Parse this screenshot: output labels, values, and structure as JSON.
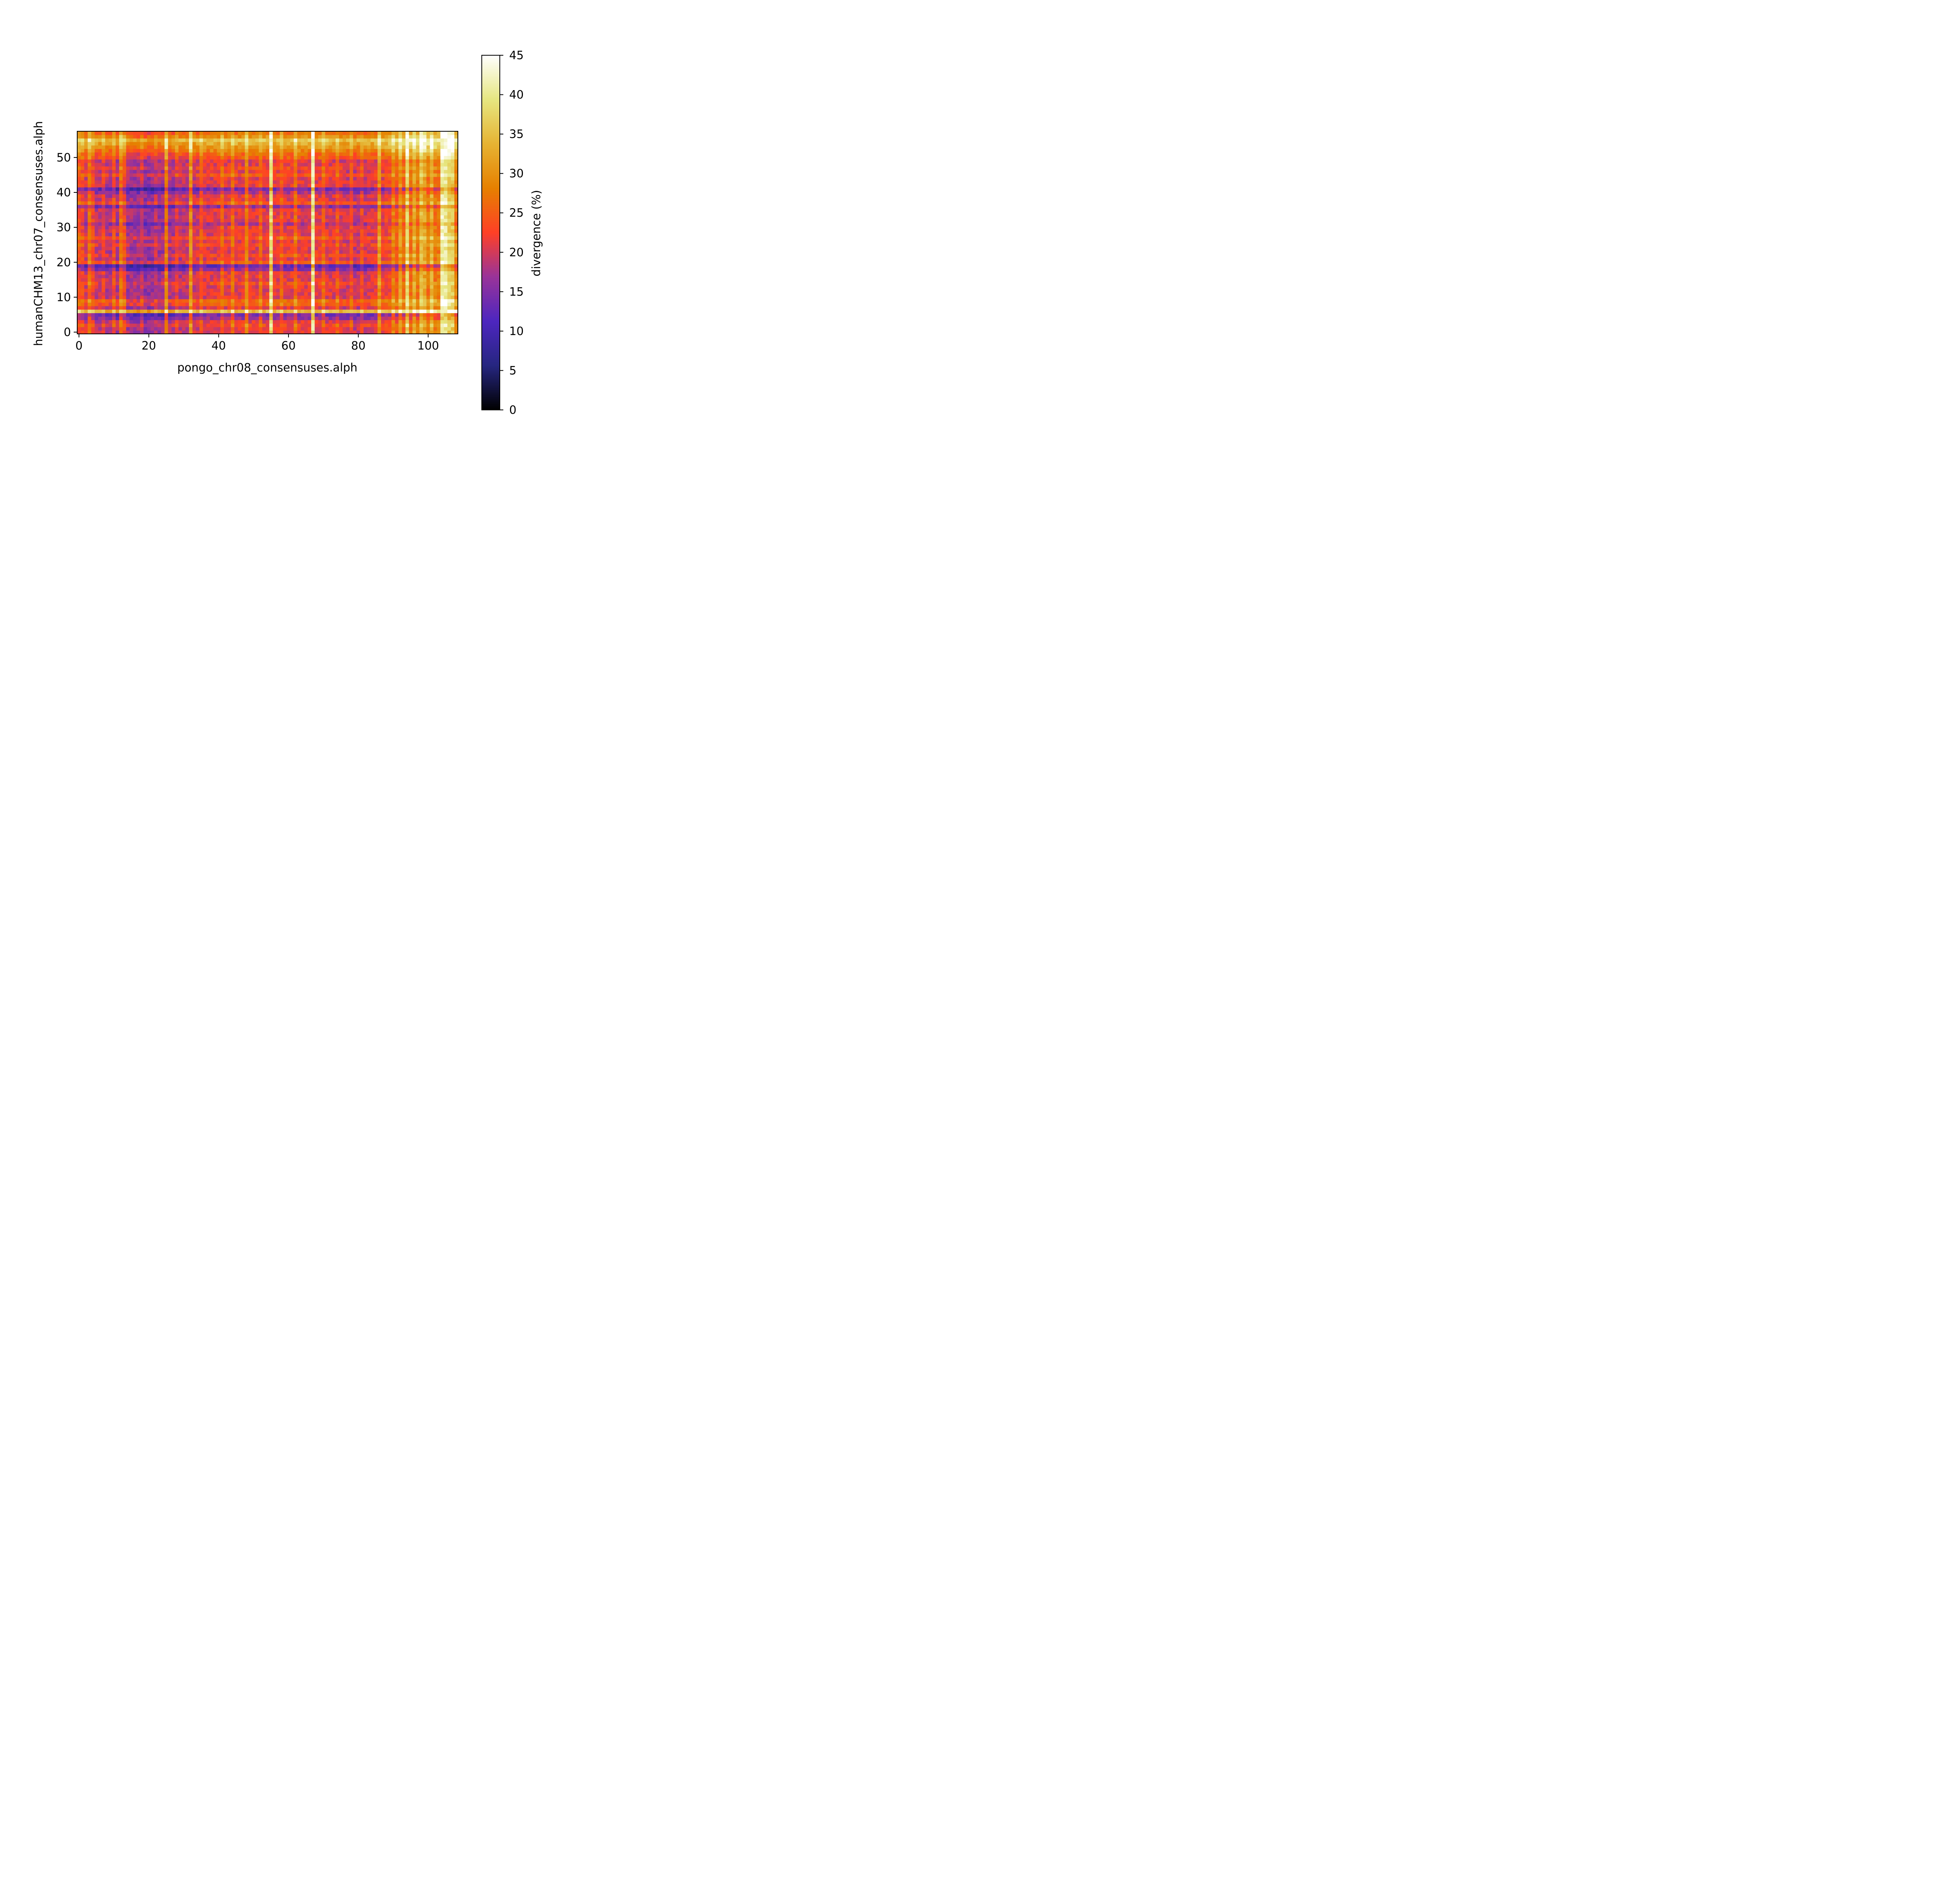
{
  "chart_data": {
    "type": "heatmap",
    "title": "",
    "xlabel": "pongo_chr08_consensuses.alph",
    "ylabel": "humanCHM13_chr07_consensuses.alph",
    "colorbar_label": "divergence (%)",
    "colormap": "CMRmap",
    "colormap_stops": [
      "#000000",
      "#262680",
      "#4d26bf",
      "#993399",
      "#ff4026",
      "#e68000",
      "#e6b333",
      "#e6e680",
      "#ffffff"
    ],
    "x_range": [
      0,
      108
    ],
    "y_range": [
      0,
      57
    ],
    "x_ticks": [
      0,
      20,
      40,
      60,
      80,
      100
    ],
    "y_ticks": [
      0,
      10,
      20,
      30,
      40,
      50
    ],
    "colorbar_range": [
      0,
      45
    ],
    "colorbar_ticks": [
      0,
      5,
      10,
      15,
      20,
      25,
      30,
      35,
      40,
      45
    ],
    "grid": false,
    "n_columns": 109,
    "n_rows": 58,
    "column_effects": [
      {
        "x": 0,
        "delta": 4
      },
      {
        "x": 1,
        "delta": 3
      },
      {
        "x": 3,
        "delta": 7
      },
      {
        "x": 4,
        "delta": 3
      },
      {
        "x": 7,
        "delta": 3
      },
      {
        "x": 10,
        "delta": 5
      },
      {
        "x": 12,
        "delta": 9
      },
      {
        "x": 13,
        "delta": 6
      },
      {
        "x": 18,
        "delta": 3
      },
      {
        "x": 22,
        "delta": 2
      },
      {
        "x": 25,
        "delta": 10
      },
      {
        "x": 28,
        "delta": 3
      },
      {
        "x": 32,
        "delta": 10
      },
      {
        "x": 35,
        "delta": 4
      },
      {
        "x": 41,
        "delta": 4
      },
      {
        "x": 44,
        "delta": 5
      },
      {
        "x": 48,
        "delta": 7
      },
      {
        "x": 52,
        "delta": 4
      },
      {
        "x": 55,
        "delta": 17
      },
      {
        "x": 58,
        "delta": 4
      },
      {
        "x": 62,
        "delta": 5
      },
      {
        "x": 67,
        "delta": 19
      },
      {
        "x": 70,
        "delta": 4
      },
      {
        "x": 74,
        "delta": 4
      },
      {
        "x": 78,
        "delta": 4
      },
      {
        "x": 81,
        "delta": 3
      },
      {
        "x": 86,
        "delta": 9
      },
      {
        "x": 90,
        "delta": 5
      },
      {
        "x": 92,
        "delta": 6
      },
      {
        "x": 94,
        "delta": 11
      },
      {
        "x": 96,
        "delta": 6
      },
      {
        "x": 98,
        "delta": 8
      },
      {
        "x": 99,
        "delta": 5
      },
      {
        "x": 101,
        "delta": 6
      },
      {
        "x": 104,
        "delta": 14
      },
      {
        "x": 105,
        "delta": 13
      },
      {
        "x": 106,
        "delta": 9
      },
      {
        "x": 107,
        "delta": 8
      }
    ],
    "row_effects": [
      {
        "y": 2,
        "delta": 2
      },
      {
        "y": 4,
        "delta": -4
      },
      {
        "y": 5,
        "delta": -6
      },
      {
        "y": 6,
        "delta": 14
      },
      {
        "y": 8,
        "delta": 4
      },
      {
        "y": 9,
        "delta": 5
      },
      {
        "y": 14,
        "delta": 2
      },
      {
        "y": 18,
        "delta": -5
      },
      {
        "y": 19,
        "delta": -8
      },
      {
        "y": 20,
        "delta": 3
      },
      {
        "y": 22,
        "delta": 2
      },
      {
        "y": 25,
        "delta": 2
      },
      {
        "y": 27,
        "delta": 3
      },
      {
        "y": 31,
        "delta": -3
      },
      {
        "y": 36,
        "delta": -5
      },
      {
        "y": 37,
        "delta": 3
      },
      {
        "y": 40,
        "delta": -3
      },
      {
        "y": 41,
        "delta": -7
      },
      {
        "y": 45,
        "delta": 3
      },
      {
        "y": 47,
        "delta": 2
      },
      {
        "y": 50,
        "delta": 4
      },
      {
        "y": 51,
        "delta": 5
      },
      {
        "y": 52,
        "delta": 8
      },
      {
        "y": 53,
        "delta": 10
      },
      {
        "y": 54,
        "delta": 12
      },
      {
        "y": 55,
        "delta": 15
      },
      {
        "y": 56,
        "delta": 9
      },
      {
        "y": 57,
        "delta": 6
      }
    ],
    "base_divergence_by_x": [
      {
        "x": 0,
        "value": 20
      },
      {
        "x": 10,
        "value": 18
      },
      {
        "x": 20,
        "value": 16
      },
      {
        "x": 30,
        "value": 19
      },
      {
        "x": 40,
        "value": 21
      },
      {
        "x": 50,
        "value": 21
      },
      {
        "x": 60,
        "value": 21
      },
      {
        "x": 70,
        "value": 21
      },
      {
        "x": 80,
        "value": 19
      },
      {
        "x": 88,
        "value": 22
      },
      {
        "x": 94,
        "value": 26
      },
      {
        "x": 100,
        "value": 27
      },
      {
        "x": 108,
        "value": 28
      }
    ]
  }
}
